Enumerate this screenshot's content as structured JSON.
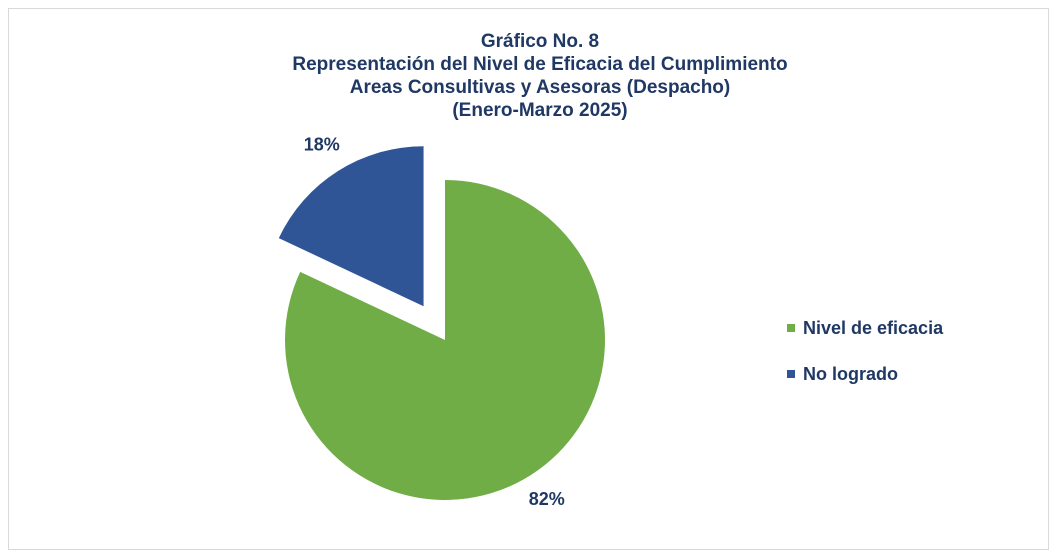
{
  "chart_data": {
    "type": "pie",
    "title": [
      "Gráfico No. 8",
      "Representación del Nivel de Eficacia del Cumplimiento",
      "Areas Consultivas y Asesoras (Despacho)",
      "(Enero-Marzo 2025)"
    ],
    "categories": [
      "Nivel de eficacia",
      "No logrado"
    ],
    "values": [
      82,
      18
    ],
    "value_labels": [
      "82%",
      "18%"
    ],
    "colors": [
      "#70ad47",
      "#2f5597"
    ],
    "exploded": [
      false,
      true
    ],
    "legend": "right"
  }
}
